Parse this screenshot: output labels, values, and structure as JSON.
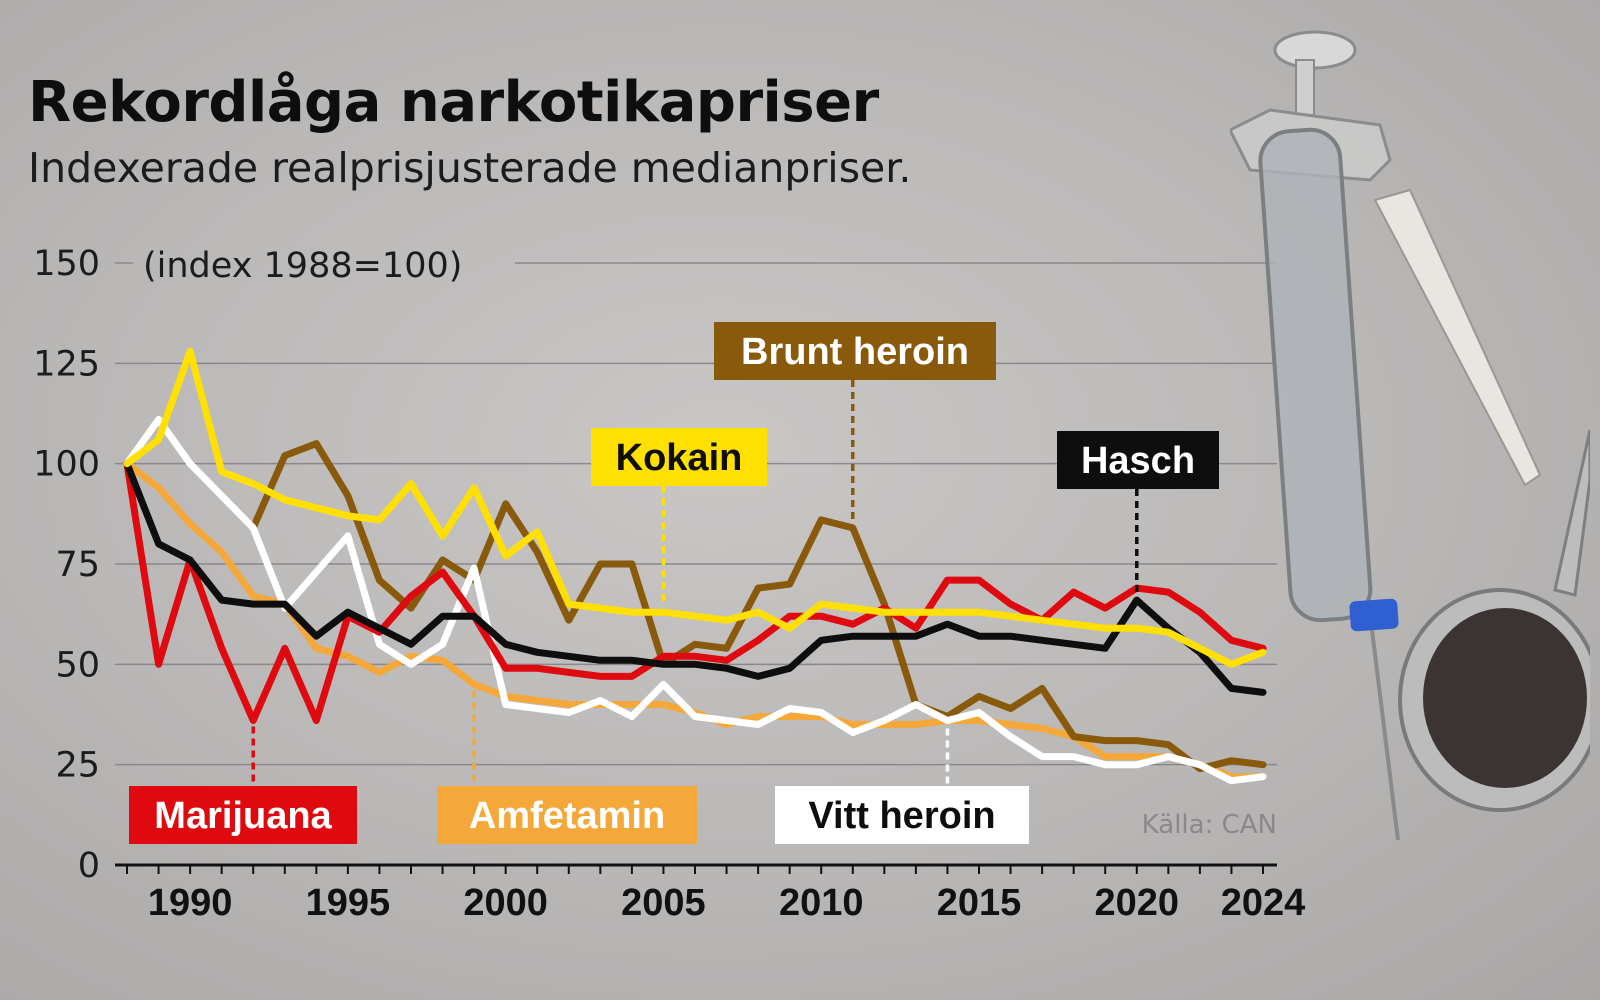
{
  "title": "Rekordlåga narkotikapriser",
  "subtitle": "Indexerade realprisjusterade medianpriser.",
  "source": "Källa: CAN",
  "chart_data": {
    "type": "line",
    "ylabel": "(index 1988=100)",
    "ylim": [
      0,
      150
    ],
    "yticks": [
      0,
      25,
      50,
      75,
      100,
      125,
      150
    ],
    "xlim": [
      1988,
      2024
    ],
    "xticks": [
      1990,
      1995,
      2000,
      2005,
      2010,
      2015,
      2020,
      2024
    ],
    "grid": "horizontal",
    "series": [
      {
        "name": "Amfetamin",
        "color": "#f5a83a",
        "label_year": 1999,
        "x": [
          1988,
          1989,
          1990,
          1991,
          1992,
          1993,
          1994,
          1995,
          1996,
          1997,
          1998,
          1999,
          2000,
          2001,
          2002,
          2003,
          2004,
          2005,
          2006,
          2007,
          2008,
          2009,
          2010,
          2011,
          2012,
          2013,
          2014,
          2015,
          2016,
          2017,
          2018,
          2019,
          2020,
          2021,
          2022,
          2023,
          2024
        ],
        "values": [
          100,
          94,
          85,
          78,
          67,
          65,
          54,
          52,
          48,
          52,
          51,
          45,
          42,
          41,
          40,
          40,
          40,
          40,
          38,
          35,
          37,
          37,
          37,
          35,
          35,
          35,
          36,
          36,
          35,
          34,
          32,
          27,
          27,
          27,
          25,
          22,
          22
        ]
      },
      {
        "name": "Brunt heroin",
        "color": "#8a5a0c",
        "label_year": 2011,
        "x": [
          1992,
          1993,
          1994,
          1995,
          1996,
          1997,
          1998,
          1999,
          2000,
          2001,
          2002,
          2003,
          2004,
          2005,
          2006,
          2007,
          2008,
          2009,
          2010,
          2011,
          2012,
          2013,
          2014,
          2015,
          2016,
          2017,
          2018,
          2019,
          2020,
          2021,
          2022,
          2023,
          2024
        ],
        "values": [
          84,
          102,
          105,
          92,
          71,
          64,
          76,
          71,
          90,
          78,
          61,
          75,
          75,
          50,
          55,
          54,
          69,
          70,
          86,
          84,
          65,
          40,
          37,
          42,
          39,
          44,
          32,
          31,
          31,
          30,
          24,
          26,
          25
        ]
      },
      {
        "name": "Vitt heroin",
        "color": "#ffffff",
        "label_year": 2014,
        "x": [
          1988,
          1989,
          1990,
          1991,
          1992,
          1993,
          1994,
          1995,
          1996,
          1997,
          1998,
          1999,
          2000,
          2001,
          2002,
          2003,
          2004,
          2005,
          2006,
          2007,
          2008,
          2009,
          2010,
          2011,
          2012,
          2013,
          2014,
          2015,
          2016,
          2017,
          2018,
          2019,
          2020,
          2021,
          2022,
          2023,
          2024
        ],
        "values": [
          100,
          111,
          100,
          92,
          84,
          64,
          73,
          82,
          55,
          50,
          55,
          74,
          40,
          39,
          38,
          41,
          37,
          45,
          37,
          36,
          35,
          39,
          38,
          33,
          36,
          40,
          36,
          38,
          32,
          27,
          27,
          25,
          25,
          27,
          25,
          21,
          22
        ]
      },
      {
        "name": "Marijuana",
        "color": "#de0a0f",
        "label_year": 1992,
        "x": [
          1988,
          1989,
          1990,
          1991,
          1992,
          1993,
          1994,
          1995,
          1996,
          1997,
          1998,
          1999,
          2000,
          2001,
          2002,
          2003,
          2004,
          2005,
          2006,
          2007,
          2008,
          2009,
          2010,
          2011,
          2012,
          2013,
          2014,
          2015,
          2016,
          2017,
          2018,
          2019,
          2020,
          2021,
          2022,
          2023,
          2024
        ],
        "values": [
          100,
          50,
          76,
          54,
          36,
          54,
          36,
          62,
          58,
          67,
          73,
          62,
          49,
          49,
          48,
          47,
          47,
          52,
          52,
          51,
          56,
          62,
          62,
          60,
          64,
          59,
          71,
          71,
          65,
          61,
          68,
          64,
          69,
          68,
          63,
          56,
          54
        ]
      },
      {
        "name": "Hasch",
        "color": "#0e0e0e",
        "label_year": 2020,
        "x": [
          1988,
          1989,
          1990,
          1991,
          1992,
          1993,
          1994,
          1995,
          1996,
          1997,
          1998,
          1999,
          2000,
          2001,
          2002,
          2003,
          2004,
          2005,
          2006,
          2007,
          2008,
          2009,
          2010,
          2011,
          2012,
          2013,
          2014,
          2015,
          2016,
          2017,
          2018,
          2019,
          2020,
          2021,
          2022,
          2023,
          2024
        ],
        "values": [
          100,
          80,
          76,
          66,
          65,
          65,
          57,
          63,
          59,
          55,
          62,
          62,
          55,
          53,
          52,
          51,
          51,
          50,
          50,
          49,
          47,
          49,
          56,
          57,
          57,
          57,
          60,
          57,
          57,
          56,
          55,
          54,
          66,
          59,
          53,
          44,
          43
        ]
      },
      {
        "name": "Kokain",
        "color": "#ffe000",
        "label_year": 2005,
        "x": [
          1988,
          1989,
          1990,
          1991,
          1992,
          1993,
          1994,
          1995,
          1996,
          1997,
          1998,
          1999,
          2000,
          2001,
          2002,
          2003,
          2004,
          2005,
          2006,
          2007,
          2008,
          2009,
          2010,
          2011,
          2012,
          2013,
          2014,
          2015,
          2016,
          2017,
          2018,
          2019,
          2020,
          2021,
          2022,
          2023,
          2024
        ],
        "values": [
          100,
          106,
          128,
          98,
          95,
          91,
          89,
          87,
          86,
          95,
          82,
          94,
          77,
          83,
          65,
          64,
          63,
          63,
          62,
          61,
          63,
          59,
          65,
          64,
          63,
          63,
          63,
          63,
          62,
          61,
          60,
          59,
          59,
          58,
          54,
          50,
          53
        ]
      }
    ]
  }
}
